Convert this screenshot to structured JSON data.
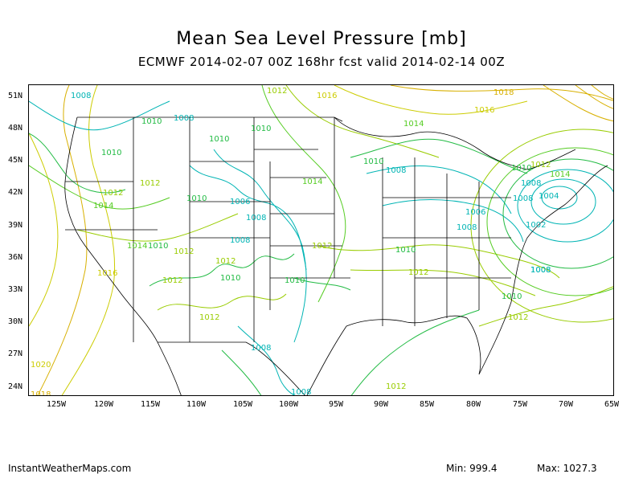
{
  "title": "Mean Sea Level Pressure [mb]",
  "subtitle": "ECMWF 2014-02-07 00Z 168hr fcst valid 2014-02-14 00Z",
  "lat_labels": [
    "51N",
    "48N",
    "45N",
    "42N",
    "39N",
    "36N",
    "33N",
    "30N",
    "27N",
    "24N"
  ],
  "lon_labels": [
    "125W",
    "120W",
    "115W",
    "110W",
    "105W",
    "100W",
    "95W",
    "90W",
    "85W",
    "80W",
    "75W",
    "70W",
    "65W"
  ],
  "contour_labels": [
    {
      "text": "1008",
      "color": "#00b4b4"
    },
    {
      "text": "1010",
      "color": "#22bb44"
    },
    {
      "text": "1008",
      "color": "#00b4b4"
    },
    {
      "text": "1012",
      "color": "#99cc00"
    },
    {
      "text": "1016",
      "color": "#cccc00"
    },
    {
      "text": "1018",
      "color": "#d8b000"
    },
    {
      "text": "1016",
      "color": "#cccc00"
    },
    {
      "text": "1010",
      "color": "#22bb44"
    },
    {
      "text": "1010",
      "color": "#22bb44"
    },
    {
      "text": "1014",
      "color": "#55cc22"
    },
    {
      "text": "1010",
      "color": "#22bb44"
    },
    {
      "text": "1012",
      "color": "#99cc00"
    },
    {
      "text": "1010",
      "color": "#22bb44"
    },
    {
      "text": "1008",
      "color": "#00b4b4"
    },
    {
      "text": "1014",
      "color": "#55cc22"
    },
    {
      "text": "1012",
      "color": "#99cc00"
    },
    {
      "text": "1010",
      "color": "#22bb44"
    },
    {
      "text": "1006",
      "color": "#00b4b4"
    },
    {
      "text": "1008",
      "color": "#00b4b4"
    },
    {
      "text": "1014",
      "color": "#55cc22"
    },
    {
      "text": "1004",
      "color": "#00b4b4"
    },
    {
      "text": "1008",
      "color": "#00b4b4"
    },
    {
      "text": "1010",
      "color": "#22bb44"
    },
    {
      "text": "1012",
      "color": "#99cc00"
    },
    {
      "text": "1014",
      "color": "#55cc22"
    },
    {
      "text": "1006",
      "color": "#00b4b4"
    },
    {
      "text": "1008",
      "color": "#00b4b4"
    },
    {
      "text": "1002",
      "color": "#00b4b4"
    },
    {
      "text": "1008",
      "color": "#00b4b4"
    },
    {
      "text": "1012",
      "color": "#99cc00"
    },
    {
      "text": "1014",
      "color": "#55cc22"
    },
    {
      "text": "1008",
      "color": "#00b4b4"
    },
    {
      "text": "1012",
      "color": "#99cc00"
    },
    {
      "text": "1010",
      "color": "#22bb44"
    },
    {
      "text": "1012",
      "color": "#99cc00"
    },
    {
      "text": "1010",
      "color": "#22bb44"
    },
    {
      "text": "1008",
      "color": "#00b4b4"
    },
    {
      "text": "1010",
      "color": "#22bb44"
    },
    {
      "text": "1016",
      "color": "#cccc00"
    },
    {
      "text": "1012",
      "color": "#99cc00"
    },
    {
      "text": "1010",
      "color": "#22bb44"
    },
    {
      "text": "1012",
      "color": "#99cc00"
    },
    {
      "text": "1012",
      "color": "#99cc00"
    },
    {
      "text": "1008",
      "color": "#00b4b4"
    },
    {
      "text": "1010",
      "color": "#22bb44"
    },
    {
      "text": "1012",
      "color": "#99cc00"
    },
    {
      "text": "1020",
      "color": "#cccc00"
    },
    {
      "text": "1008",
      "color": "#00b4b4"
    },
    {
      "text": "1012",
      "color": "#99cc00"
    },
    {
      "text": "1008",
      "color": "#00b4b4"
    },
    {
      "text": "1018",
      "color": "#d8b000"
    }
  ],
  "footer": {
    "source": "InstantWeatherMaps.com",
    "min": "Min:  999.4",
    "max": "Max: 1027.3"
  }
}
